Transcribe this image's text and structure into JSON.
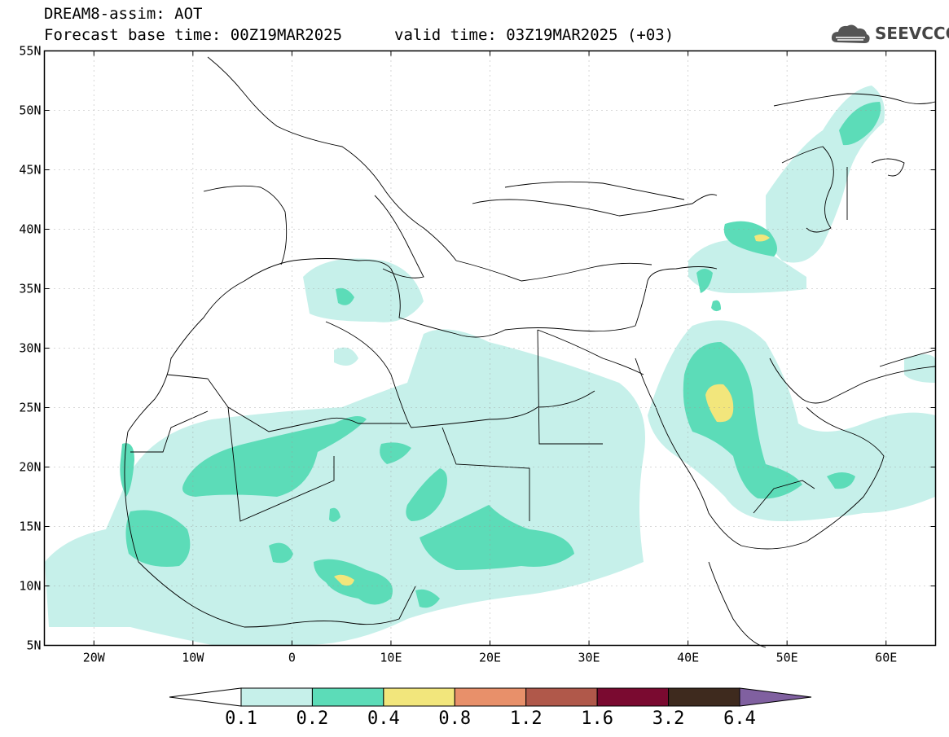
{
  "header": {
    "title": "DREAM8-assim: AOT",
    "base_time": "Forecast base time: 00Z19MAR2025",
    "valid_time": "valid time: 03Z19MAR2025 (+03)"
  },
  "logo": {
    "text": "SEEVCCC",
    "icon": "cloud-icon"
  },
  "map": {
    "lat_labels": [
      "55N",
      "50N",
      "45N",
      "40N",
      "35N",
      "30N",
      "25N",
      "20N",
      "15N",
      "10N",
      "5N"
    ],
    "lon_labels": [
      "20W",
      "10W",
      "0",
      "10E",
      "20E",
      "30E",
      "40E",
      "50E",
      "60E"
    ],
    "extent": {
      "lon": [
        -25,
        65
      ],
      "lat": [
        5,
        55
      ]
    },
    "grid": "dotted"
  },
  "colorbar": {
    "labels": [
      "0.1",
      "0.2",
      "0.4",
      "0.8",
      "1.2",
      "1.6",
      "3.2",
      "6.4"
    ],
    "colors": [
      "#c6f0ea",
      "#5cdcb8",
      "#f2e67c",
      "#e8906a",
      "#b0584a",
      "#7a0a30",
      "#3e2a1e",
      "#8060a0"
    ],
    "low_arrow_color": "#ffffff"
  }
}
